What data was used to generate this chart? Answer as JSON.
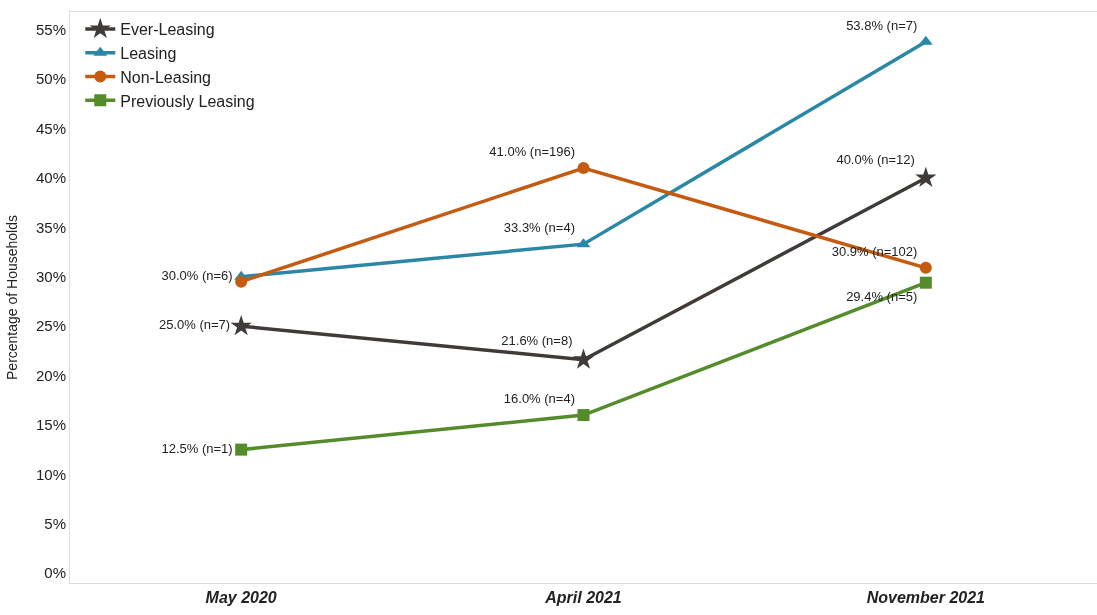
{
  "chart_data": {
    "type": "line",
    "ylabel": "Percentage of Households",
    "categories": [
      "May 2020",
      "April 2021",
      "November 2021"
    ],
    "ylim": [
      -1,
      56.8
    ],
    "yticks": [
      {
        "value": 0,
        "label": "0%"
      },
      {
        "value": 5,
        "label": "5%"
      },
      {
        "value": 10,
        "label": "10%"
      },
      {
        "value": 15,
        "label": "15%"
      },
      {
        "value": 20,
        "label": "20%"
      },
      {
        "value": 25,
        "label": "25%"
      },
      {
        "value": 30,
        "label": "30%"
      },
      {
        "value": 35,
        "label": "35%"
      },
      {
        "value": 40,
        "label": "40%"
      },
      {
        "value": 45,
        "label": "45%"
      },
      {
        "value": 50,
        "label": "50%"
      },
      {
        "value": 55,
        "label": "55%"
      }
    ],
    "grid": false,
    "legend": "top left",
    "line_style": "solid",
    "series": [
      {
        "name": "Ever-Leasing",
        "color": "#403b38",
        "marker": "star",
        "values": [
          25.0,
          21.6,
          40.0
        ],
        "value_labels": [
          "25.0% (n=7)",
          "21.6% (n=8)",
          "40.0% (n=12)"
        ]
      },
      {
        "name": "Leasing",
        "color": "#2a87a5",
        "marker": "triangle",
        "values": [
          30.0,
          33.3,
          53.8
        ],
        "value_labels": [
          "30.0% (n=6)",
          "33.3% (n=4)",
          "53.8% (n=7)"
        ]
      },
      {
        "name": "Non-Leasing",
        "color": "#c55a11",
        "marker": "circle",
        "values": [
          29.5,
          41.0,
          30.9
        ],
        "value_labels": [
          null,
          "41.0% (n=196)",
          "30.9% (n=102)"
        ]
      },
      {
        "name": "Previously Leasing",
        "color": "#548b2b",
        "marker": "square",
        "values": [
          12.5,
          16.0,
          29.4
        ],
        "value_labels": [
          "12.5% (n=1)",
          "16.0% (n=4)",
          "29.4% (n=5)"
        ]
      }
    ]
  }
}
